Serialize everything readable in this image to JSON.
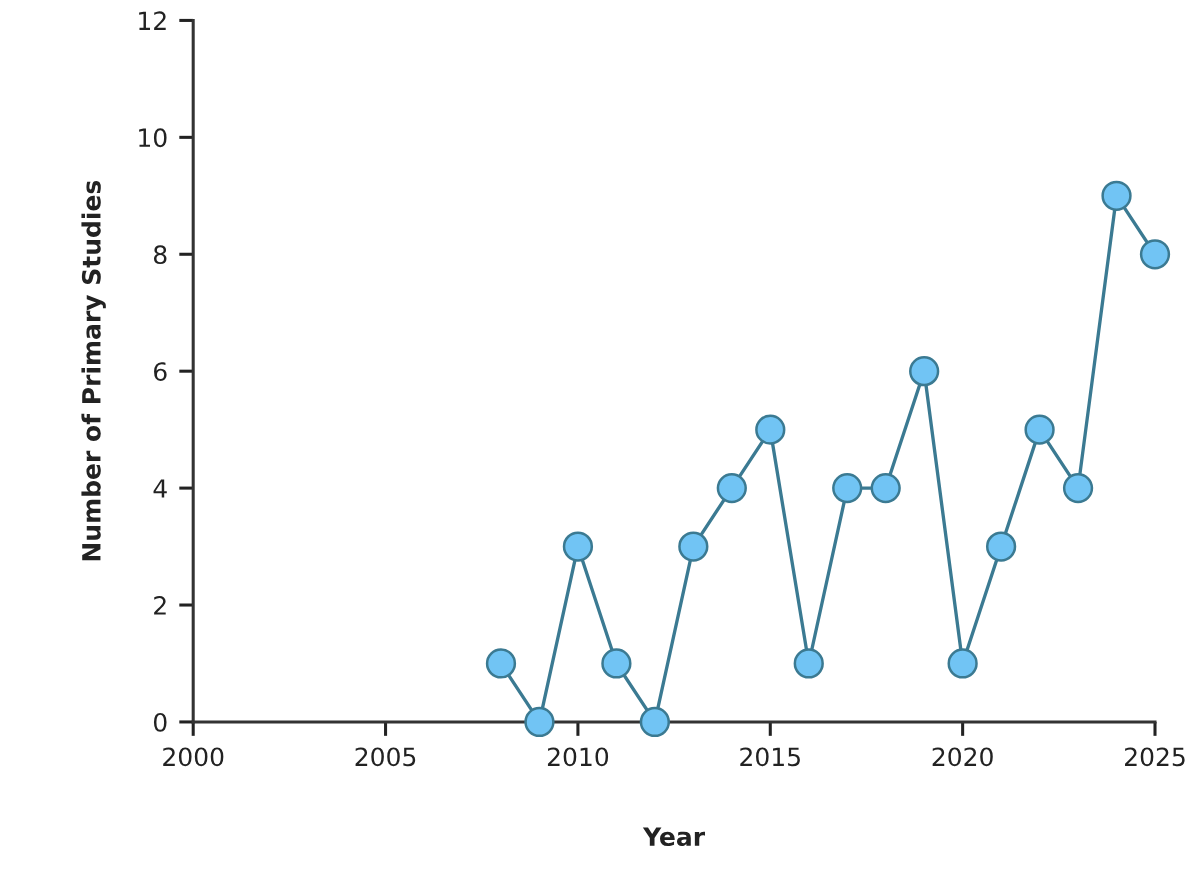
{
  "chart_data": {
    "type": "line",
    "xlabel": "Year",
    "ylabel": "Number of Primary Studies",
    "x": [
      2008,
      2009,
      2010,
      2011,
      2012,
      2013,
      2014,
      2015,
      2016,
      2017,
      2018,
      2019,
      2020,
      2021,
      2022,
      2023,
      2024,
      2025
    ],
    "series": [
      {
        "color": "#71c4f4",
        "values": [
          1,
          0,
          3,
          1,
          0,
          3,
          4,
          5,
          1,
          4,
          4,
          6,
          1,
          3,
          5,
          4,
          9,
          8
        ]
      }
    ],
    "xlim": [
      2000,
      2025
    ],
    "xticks": [
      2000,
      2005,
      2010,
      2015,
      2020,
      2025
    ],
    "ylim": [
      0,
      12
    ],
    "yticks": [
      0,
      2,
      4,
      6,
      8,
      10,
      12
    ],
    "marker": "circle",
    "line_style": "solid",
    "grid": false
  }
}
